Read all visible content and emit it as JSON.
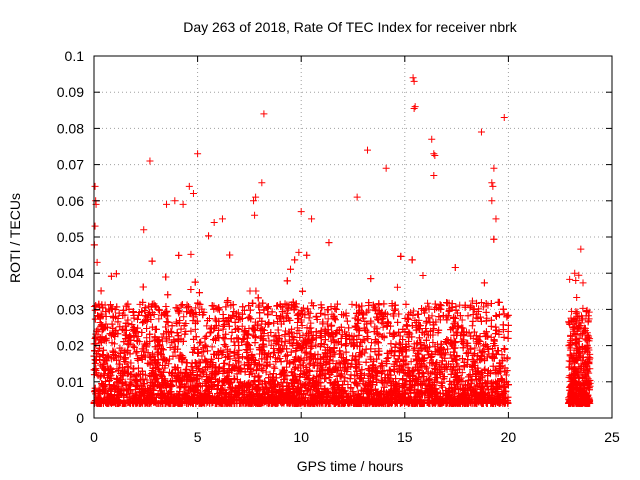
{
  "chart_data": {
    "type": "scatter",
    "title": "Day 263 of 2018, Rate Of TEC Index for receiver nbrk",
    "xlabel": "GPS time / hours",
    "ylabel": "ROTI / TECUs",
    "xlim": [
      0,
      25
    ],
    "ylim": [
      0,
      0.1
    ],
    "xticks": [
      "0",
      "5",
      "10",
      "15",
      "20",
      "25"
    ],
    "yticks": [
      "0",
      "0.01",
      "0.02",
      "0.03",
      "0.04",
      "0.05",
      "0.06",
      "0.07",
      "0.08",
      "0.09",
      "0.1"
    ],
    "grid": true,
    "marker": "+",
    "series": [
      {
        "name": "ROTI",
        "color": "#ff0000",
        "segments": [
          {
            "x_range": [
              0.0,
              20.0
            ],
            "typical_range": [
              0.004,
              0.032
            ],
            "density": 9000
          },
          {
            "x_range": [
              22.9,
              23.95
            ],
            "typical_range": [
              0.004,
              0.03
            ],
            "density": 500
          }
        ],
        "outliers": [
          {
            "x": 0.05,
            "y": 0.064
          },
          {
            "x": 0.08,
            "y": 0.06
          },
          {
            "x": 0.1,
            "y": 0.059
          },
          {
            "x": 0.05,
            "y": 0.053
          },
          {
            "x": 0.15,
            "y": 0.043
          },
          {
            "x": 2.4,
            "y": 0.052
          },
          {
            "x": 2.7,
            "y": 0.071
          },
          {
            "x": 3.5,
            "y": 0.059
          },
          {
            "x": 3.9,
            "y": 0.06
          },
          {
            "x": 4.3,
            "y": 0.059
          },
          {
            "x": 4.6,
            "y": 0.064
          },
          {
            "x": 4.8,
            "y": 0.062
          },
          {
            "x": 5.0,
            "y": 0.073
          },
          {
            "x": 5.8,
            "y": 0.054
          },
          {
            "x": 6.2,
            "y": 0.055
          },
          {
            "x": 7.7,
            "y": 0.06
          },
          {
            "x": 7.8,
            "y": 0.061
          },
          {
            "x": 7.75,
            "y": 0.056
          },
          {
            "x": 8.1,
            "y": 0.065
          },
          {
            "x": 8.2,
            "y": 0.084
          },
          {
            "x": 10.0,
            "y": 0.057
          },
          {
            "x": 10.5,
            "y": 0.055
          },
          {
            "x": 12.7,
            "y": 0.061
          },
          {
            "x": 13.2,
            "y": 0.074
          },
          {
            "x": 14.1,
            "y": 0.069
          },
          {
            "x": 15.4,
            "y": 0.094
          },
          {
            "x": 15.45,
            "y": 0.093
          },
          {
            "x": 15.5,
            "y": 0.086
          },
          {
            "x": 15.45,
            "y": 0.0855
          },
          {
            "x": 16.3,
            "y": 0.077
          },
          {
            "x": 16.4,
            "y": 0.073
          },
          {
            "x": 16.45,
            "y": 0.0725
          },
          {
            "x": 16.4,
            "y": 0.067
          },
          {
            "x": 18.7,
            "y": 0.079
          },
          {
            "x": 19.3,
            "y": 0.069
          },
          {
            "x": 19.2,
            "y": 0.065
          },
          {
            "x": 19.25,
            "y": 0.064
          },
          {
            "x": 19.2,
            "y": 0.06
          },
          {
            "x": 19.4,
            "y": 0.055
          },
          {
            "x": 19.8,
            "y": 0.083
          },
          {
            "x": 23.2,
            "y": 0.04
          },
          {
            "x": 23.25,
            "y": 0.038
          }
        ]
      }
    ]
  }
}
